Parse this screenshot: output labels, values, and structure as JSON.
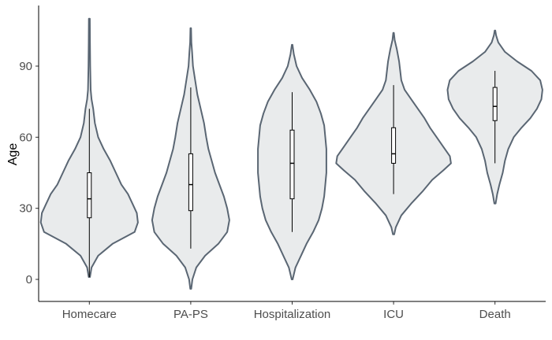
{
  "chart_data": {
    "type": "violin",
    "title": "",
    "xlabel": "",
    "ylabel": "Age",
    "ylim": [
      -9,
      115
    ],
    "yticks": [
      0,
      30,
      60,
      90
    ],
    "categories": [
      "Homecare",
      "PA-PS",
      "Hospitalization",
      "ICU",
      "Death"
    ],
    "fill_color": "#e9ebec",
    "outline_color": "#5a6673",
    "grid": false,
    "legend": "none",
    "violins": [
      {
        "category": "Homecare",
        "box": {
          "lower_whisker": 1,
          "q1": 26,
          "median": 34,
          "q3": 45,
          "upper_whisker": 72
        },
        "density": [
          [
            1,
            0.006
          ],
          [
            5,
            0.02
          ],
          [
            10,
            0.08
          ],
          [
            15,
            0.21
          ],
          [
            20,
            0.41
          ],
          [
            24,
            0.44
          ],
          [
            28,
            0.43
          ],
          [
            32,
            0.39
          ],
          [
            36,
            0.35
          ],
          [
            40,
            0.29
          ],
          [
            45,
            0.24
          ],
          [
            50,
            0.19
          ],
          [
            55,
            0.13
          ],
          [
            60,
            0.08
          ],
          [
            66,
            0.05
          ],
          [
            72,
            0.035
          ],
          [
            76,
            0.02
          ],
          [
            80,
            0.012
          ],
          [
            90,
            0.008
          ],
          [
            100,
            0.006
          ],
          [
            110,
            0.004
          ]
        ]
      },
      {
        "category": "PA-PS",
        "box": {
          "lower_whisker": 13,
          "q1": 29,
          "median": 40,
          "q3": 53,
          "upper_whisker": 81
        },
        "density": [
          [
            -4,
            0.004
          ],
          [
            0,
            0.015
          ],
          [
            5,
            0.05
          ],
          [
            10,
            0.13
          ],
          [
            15,
            0.25
          ],
          [
            20,
            0.33
          ],
          [
            25,
            0.35
          ],
          [
            30,
            0.33
          ],
          [
            35,
            0.3
          ],
          [
            40,
            0.26
          ],
          [
            45,
            0.22
          ],
          [
            50,
            0.19
          ],
          [
            55,
            0.16
          ],
          [
            60,
            0.14
          ],
          [
            66,
            0.12
          ],
          [
            72,
            0.09
          ],
          [
            78,
            0.06
          ],
          [
            84,
            0.04
          ],
          [
            90,
            0.02
          ],
          [
            96,
            0.012
          ],
          [
            100,
            0.006
          ],
          [
            106,
            0.003
          ]
        ]
      },
      {
        "category": "Hospitalization",
        "box": {
          "lower_whisker": 20,
          "q1": 34,
          "median": 49,
          "q3": 63,
          "upper_whisker": 79
        },
        "density": [
          [
            0,
            0.004
          ],
          [
            5,
            0.03
          ],
          [
            10,
            0.08
          ],
          [
            15,
            0.13
          ],
          [
            20,
            0.19
          ],
          [
            25,
            0.24
          ],
          [
            30,
            0.27
          ],
          [
            35,
            0.29
          ],
          [
            40,
            0.3
          ],
          [
            45,
            0.31
          ],
          [
            50,
            0.31
          ],
          [
            55,
            0.31
          ],
          [
            60,
            0.3
          ],
          [
            65,
            0.29
          ],
          [
            70,
            0.26
          ],
          [
            75,
            0.22
          ],
          [
            80,
            0.16
          ],
          [
            85,
            0.09
          ],
          [
            90,
            0.04
          ],
          [
            95,
            0.015
          ],
          [
            99,
            0.003
          ]
        ]
      },
      {
        "category": "ICU",
        "box": {
          "lower_whisker": 36,
          "q1": 49,
          "median": 53,
          "q3": 64,
          "upper_whisker": 82
        },
        "density": [
          [
            19,
            0.006
          ],
          [
            22,
            0.02
          ],
          [
            27,
            0.07
          ],
          [
            32,
            0.16
          ],
          [
            37,
            0.26
          ],
          [
            42,
            0.35
          ],
          [
            46,
            0.45
          ],
          [
            49,
            0.52
          ],
          [
            52,
            0.51
          ],
          [
            56,
            0.45
          ],
          [
            60,
            0.39
          ],
          [
            64,
            0.33
          ],
          [
            68,
            0.28
          ],
          [
            72,
            0.22
          ],
          [
            76,
            0.16
          ],
          [
            80,
            0.1
          ],
          [
            84,
            0.07
          ],
          [
            88,
            0.06
          ],
          [
            92,
            0.05
          ],
          [
            97,
            0.03
          ],
          [
            101,
            0.01
          ],
          [
            104,
            0.003
          ]
        ]
      },
      {
        "category": "Death",
        "box": {
          "lower_whisker": 49,
          "q1": 67,
          "median": 73,
          "q3": 81,
          "upper_whisker": 88
        },
        "density": [
          [
            32,
            0.006
          ],
          [
            36,
            0.02
          ],
          [
            40,
            0.04
          ],
          [
            45,
            0.07
          ],
          [
            50,
            0.09
          ],
          [
            55,
            0.12
          ],
          [
            60,
            0.17
          ],
          [
            64,
            0.24
          ],
          [
            68,
            0.32
          ],
          [
            72,
            0.38
          ],
          [
            76,
            0.42
          ],
          [
            80,
            0.43
          ],
          [
            84,
            0.41
          ],
          [
            88,
            0.33
          ],
          [
            92,
            0.2
          ],
          [
            96,
            0.09
          ],
          [
            100,
            0.03
          ],
          [
            103,
            0.01
          ],
          [
            105,
            0.003
          ]
        ]
      }
    ]
  }
}
